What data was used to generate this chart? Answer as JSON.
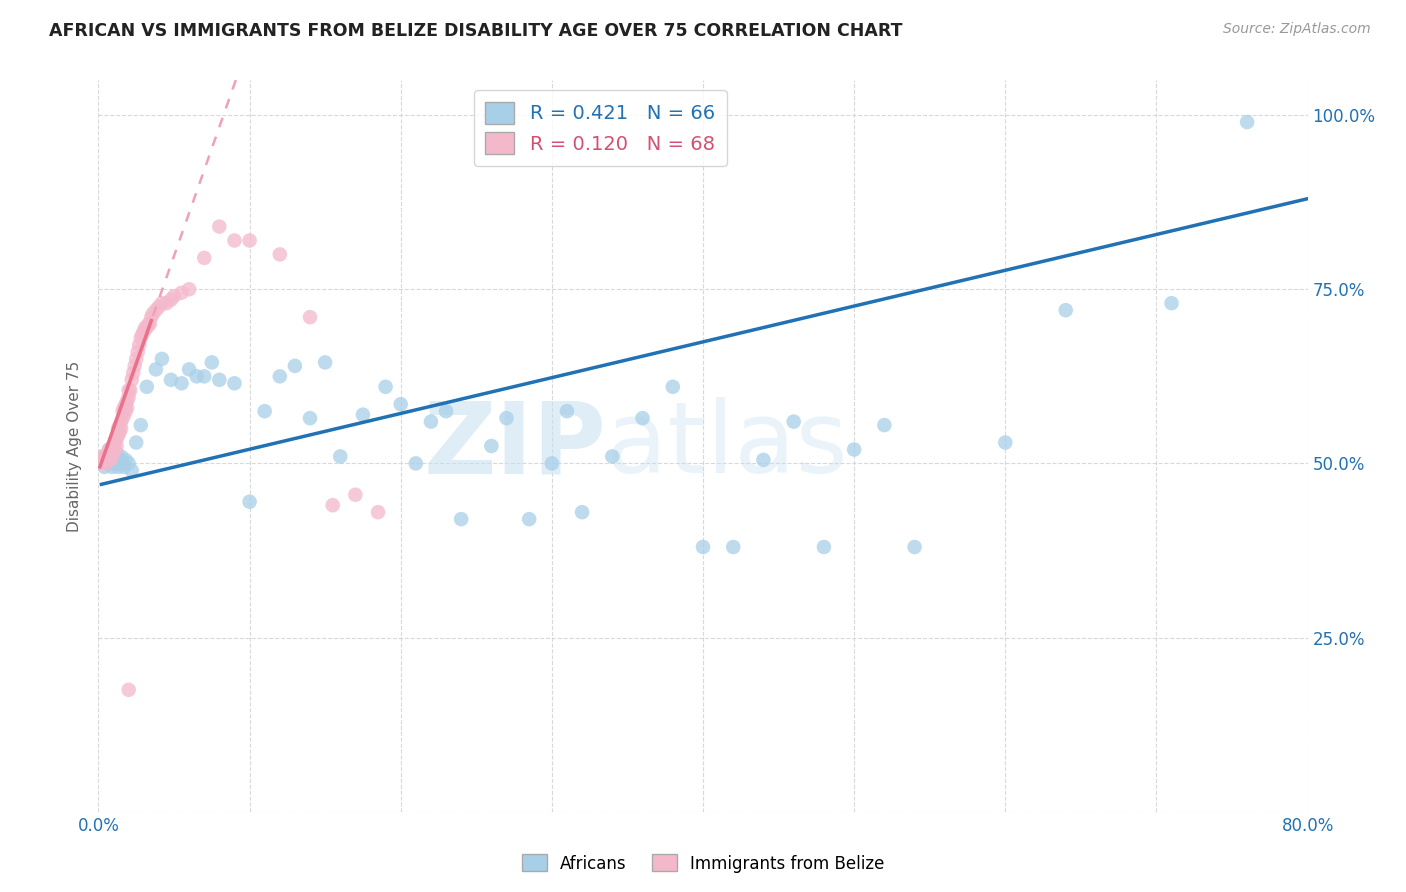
{
  "title": "AFRICAN VS IMMIGRANTS FROM BELIZE DISABILITY AGE OVER 75 CORRELATION CHART",
  "source": "Source: ZipAtlas.com",
  "ylabel": "Disability Age Over 75",
  "legend_african_label": "Africans",
  "legend_belize_label": "Immigrants from Belize",
  "r_african": 0.421,
  "n_african": 66,
  "r_belize": 0.12,
  "n_belize": 68,
  "watermark": "ZIPatlas",
  "xlim": [
    0.0,
    0.8
  ],
  "ylim": [
    0.0,
    1.05
  ],
  "african_color": "#a8cfe8",
  "belize_color": "#f4b8cb",
  "african_line_color": "#2171b5",
  "belize_line_color": "#e8728a",
  "belize_dashed_color": "#f0a0b8",
  "background_color": "#ffffff",
  "grid_color": "#d0d0d0",
  "african_x": [
    0.003,
    0.004,
    0.005,
    0.006,
    0.007,
    0.008,
    0.009,
    0.01,
    0.011,
    0.012,
    0.013,
    0.014,
    0.015,
    0.016,
    0.017,
    0.018,
    0.02,
    0.022,
    0.025,
    0.028,
    0.032,
    0.038,
    0.042,
    0.048,
    0.055,
    0.06,
    0.065,
    0.07,
    0.075,
    0.08,
    0.09,
    0.1,
    0.11,
    0.12,
    0.13,
    0.14,
    0.15,
    0.16,
    0.175,
    0.19,
    0.2,
    0.21,
    0.22,
    0.23,
    0.24,
    0.26,
    0.27,
    0.285,
    0.3,
    0.31,
    0.32,
    0.34,
    0.36,
    0.38,
    0.4,
    0.42,
    0.44,
    0.46,
    0.48,
    0.5,
    0.52,
    0.54,
    0.6,
    0.64,
    0.71,
    0.76
  ],
  "african_y": [
    0.505,
    0.495,
    0.51,
    0.5,
    0.52,
    0.505,
    0.495,
    0.51,
    0.5,
    0.515,
    0.495,
    0.505,
    0.51,
    0.5,
    0.495,
    0.505,
    0.5,
    0.49,
    0.53,
    0.555,
    0.61,
    0.635,
    0.65,
    0.62,
    0.615,
    0.635,
    0.625,
    0.625,
    0.645,
    0.62,
    0.615,
    0.445,
    0.575,
    0.625,
    0.64,
    0.565,
    0.645,
    0.51,
    0.57,
    0.61,
    0.585,
    0.5,
    0.56,
    0.575,
    0.42,
    0.525,
    0.565,
    0.42,
    0.5,
    0.575,
    0.43,
    0.51,
    0.565,
    0.61,
    0.38,
    0.38,
    0.505,
    0.56,
    0.38,
    0.52,
    0.555,
    0.38,
    0.53,
    0.72,
    0.73,
    0.99
  ],
  "belize_x": [
    0.001,
    0.002,
    0.003,
    0.004,
    0.005,
    0.006,
    0.007,
    0.007,
    0.008,
    0.008,
    0.009,
    0.009,
    0.01,
    0.01,
    0.011,
    0.011,
    0.012,
    0.012,
    0.013,
    0.013,
    0.014,
    0.014,
    0.015,
    0.015,
    0.016,
    0.016,
    0.017,
    0.017,
    0.018,
    0.018,
    0.019,
    0.019,
    0.02,
    0.02,
    0.021,
    0.022,
    0.023,
    0.024,
    0.025,
    0.026,
    0.027,
    0.028,
    0.029,
    0.03,
    0.031,
    0.032,
    0.033,
    0.034,
    0.035,
    0.036,
    0.038,
    0.04,
    0.042,
    0.045,
    0.048,
    0.05,
    0.055,
    0.06,
    0.07,
    0.08,
    0.09,
    0.1,
    0.12,
    0.14,
    0.155,
    0.17,
    0.185,
    0.02
  ],
  "belize_y": [
    0.5,
    0.51,
    0.505,
    0.51,
    0.5,
    0.505,
    0.51,
    0.52,
    0.505,
    0.515,
    0.51,
    0.52,
    0.515,
    0.525,
    0.52,
    0.53,
    0.525,
    0.535,
    0.54,
    0.55,
    0.545,
    0.555,
    0.55,
    0.56,
    0.565,
    0.575,
    0.57,
    0.58,
    0.575,
    0.585,
    0.58,
    0.59,
    0.595,
    0.605,
    0.605,
    0.62,
    0.63,
    0.64,
    0.65,
    0.66,
    0.67,
    0.68,
    0.685,
    0.69,
    0.695,
    0.695,
    0.7,
    0.7,
    0.71,
    0.715,
    0.72,
    0.725,
    0.73,
    0.73,
    0.735,
    0.74,
    0.745,
    0.75,
    0.795,
    0.84,
    0.82,
    0.82,
    0.8,
    0.71,
    0.44,
    0.455,
    0.43,
    0.175
  ]
}
